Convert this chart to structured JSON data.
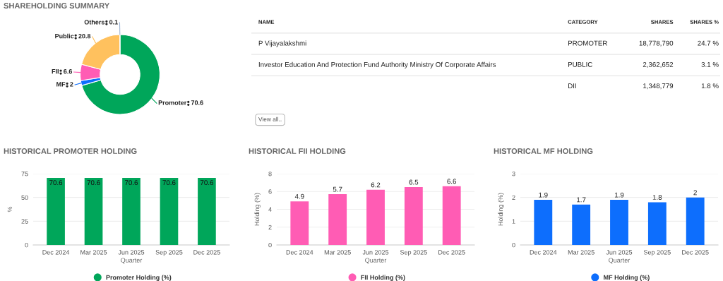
{
  "chart_data": [
    {
      "type": "donut",
      "title": "SHAREHOLDING SUMMARY",
      "categories": [
        "Promoter",
        "MF",
        "FII",
        "Public",
        "Others"
      ],
      "values": [
        70.6,
        2,
        6.6,
        20.8,
        0.1
      ],
      "colors": [
        "#00a65a",
        "#0d6efd",
        "#ff5cb4",
        "#ffc15e",
        "#9fb6d6"
      ],
      "data_labels": true
    },
    {
      "type": "other",
      "annotations": [
        "NAME",
        "CATEGORY",
        "SHARES",
        "SHARES %",
        "P Vijayalakshmi",
        "PROMOTER",
        "18,778,790",
        "24.7 %",
        "Investor Education And Protection Fund Authority Ministry Of Corporate Affairs",
        "PUBLIC",
        "2,362,652",
        "3.1 %",
        null,
        "DII",
        "1,348,779",
        "1.8 %",
        "View all.."
      ]
    },
    {
      "type": "bar",
      "title": "HISTORICAL PROMOTER HOLDING",
      "xlabel": "Quarter",
      "ylabel": "%",
      "categories": [
        "Dec 2024",
        "Mar 2025",
        "Jun 2025",
        "Sep 2025",
        "Dec 2025"
      ],
      "series": [
        {
          "name": "Promoter Holding (%)",
          "color": "#00a65a",
          "values": [
            70.6,
            70.6,
            70.6,
            70.6,
            70.6
          ]
        }
      ],
      "ylim": [
        0,
        75
      ],
      "yticks": [
        0,
        25,
        50,
        75
      ],
      "grid": "y",
      "legend": "bottom",
      "data_labels": true
    },
    {
      "type": "bar",
      "title": "HISTORICAL FII HOLDING",
      "xlabel": "Quarter",
      "ylabel": "Holding (%)",
      "categories": [
        "Dec 2024",
        "Mar 2025",
        "Jun 2025",
        "Sep 2025",
        "Dec 2025"
      ],
      "series": [
        {
          "name": "FII Holding (%)",
          "color": "#ff5cb4",
          "values": [
            4.9,
            5.7,
            6.2,
            6.5,
            6.6
          ]
        }
      ],
      "ylim": [
        0,
        8
      ],
      "yticks": [
        0,
        2,
        4,
        6,
        8
      ],
      "grid": "y",
      "legend": "bottom",
      "data_labels": true
    },
    {
      "type": "bar",
      "title": "HISTORICAL MF HOLDING",
      "xlabel": "Quarter",
      "ylabel": "Holding (%)",
      "categories": [
        "Dec 2024",
        "Mar 2025",
        "Jun 2025",
        "Sep 2025",
        "Dec 2025"
      ],
      "series": [
        {
          "name": "MF Holding (%)",
          "color": "#0d6efd",
          "values": [
            1.9,
            1.7,
            1.9,
            1.8,
            2
          ]
        }
      ],
      "ylim": [
        0,
        3
      ],
      "yticks": [
        0,
        1,
        2,
        3
      ],
      "grid": "y",
      "legend": "bottom",
      "data_labels": true
    }
  ]
}
